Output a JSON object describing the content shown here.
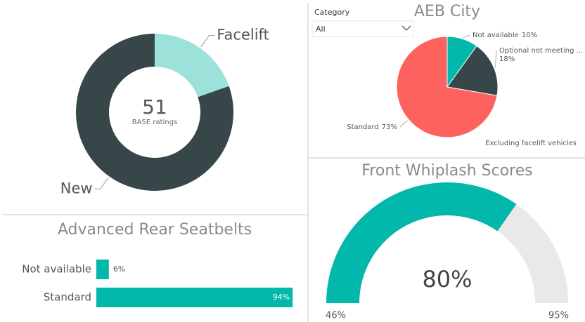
{
  "slicer": {
    "label": "Category",
    "value": "All"
  },
  "chart_data": [
    {
      "type": "donut",
      "categories": [
        "Facelift",
        "New"
      ],
      "values": [
        10,
        41
      ],
      "colors": [
        "#9ce2da",
        "#374649"
      ],
      "center_value": 51,
      "center_label": "BASE ratings"
    },
    {
      "type": "pie",
      "title": "AEB City",
      "categories": [
        "Not available",
        "Optional not meeting ...",
        "Standard"
      ],
      "values": [
        10,
        18,
        73
      ],
      "value_labels": [
        "10%",
        "18%",
        "73%"
      ],
      "colors": [
        "#01b8aa",
        "#374649",
        "#fd625e"
      ],
      "note": "Excluding facelift vehicles"
    },
    {
      "type": "bar",
      "title": "Advanced Rear Seatbelts",
      "categories": [
        "Not available",
        "Standard"
      ],
      "values": [
        6,
        94
      ],
      "value_labels": [
        "6%",
        "94%"
      ],
      "color": "#01b8aa",
      "xlim": [
        0,
        100
      ]
    },
    {
      "type": "gauge",
      "title": "Front Whiplash Scores",
      "value": 80,
      "value_label": "80%",
      "min": 46,
      "min_label": "46%",
      "max": 95,
      "max_label": "95%",
      "color": "#01b8aa",
      "track_color": "#e9e9e9"
    }
  ]
}
